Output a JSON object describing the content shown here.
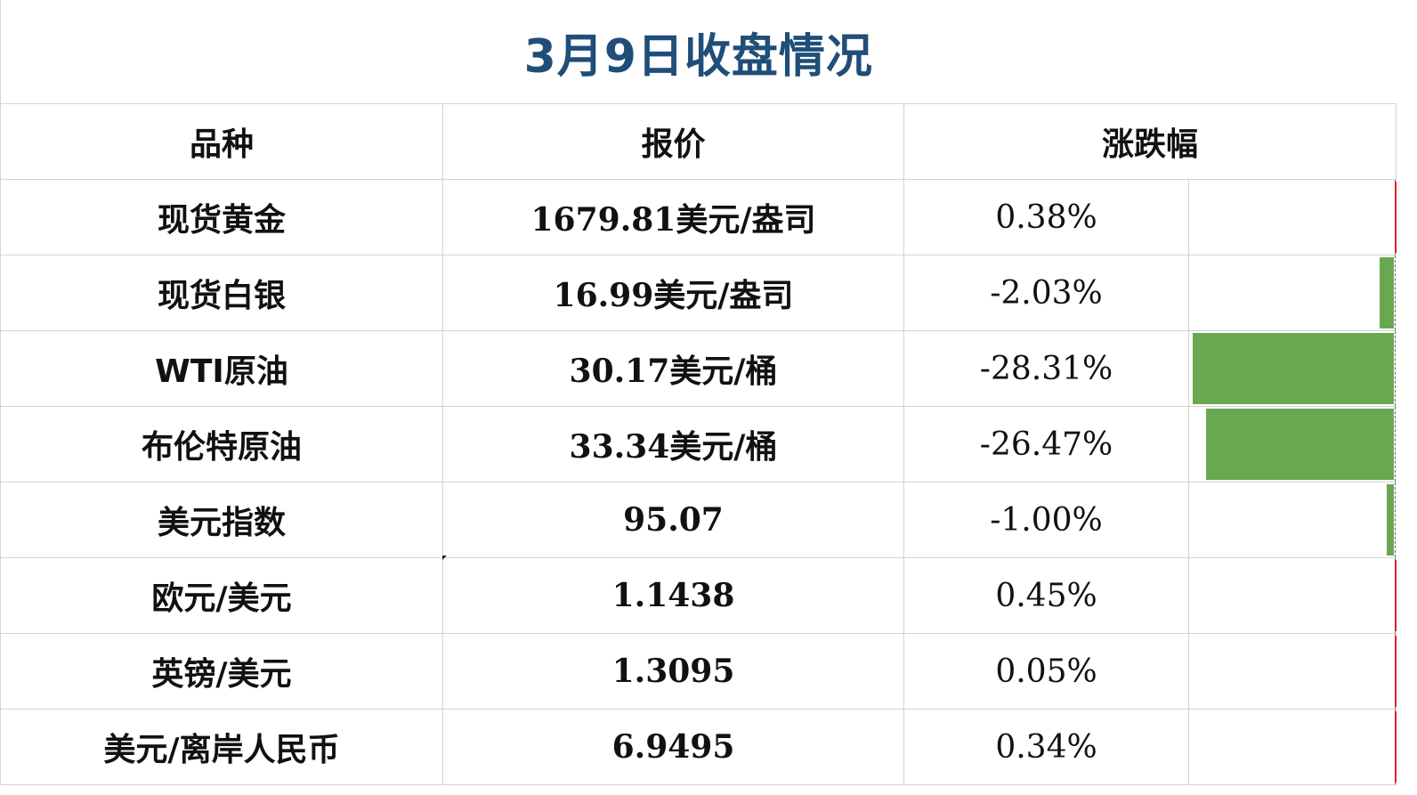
{
  "title": "3月9日收盘情况",
  "headers": {
    "name": "品种",
    "price": "报价",
    "change": "涨跌幅"
  },
  "rows": [
    {
      "name": "现货黄金",
      "price": "1679.81美元/盎司",
      "change": "0.38%",
      "change_value": 0.38
    },
    {
      "name": "现货白银",
      "price": "16.99美元/盎司",
      "change": "-2.03%",
      "change_value": -2.03
    },
    {
      "name": "WTI原油",
      "price": "30.17美元/桶",
      "change": "-28.31%",
      "change_value": -28.31
    },
    {
      "name": "布伦特原油",
      "price": "33.34美元/桶",
      "change": "-26.47%",
      "change_value": -26.47
    },
    {
      "name": "美元指数",
      "price": "95.07",
      "change": "-1.00%",
      "change_value": -1.0
    },
    {
      "name": "欧元/美元",
      "price": "1.1438",
      "change": "0.45%",
      "change_value": 0.45
    },
    {
      "name": "英镑/美元",
      "price": "1.3095",
      "change": "0.05%",
      "change_value": 0.05
    },
    {
      "name": "美元/离岸人民币",
      "price": "6.9495",
      "change": "0.34%",
      "change_value": 0.34
    }
  ],
  "colors": {
    "title": "#1f4e79",
    "negative_bar": "#6aa84f",
    "positive_bar": "#e02020",
    "grid": "#d4d4d4"
  }
}
